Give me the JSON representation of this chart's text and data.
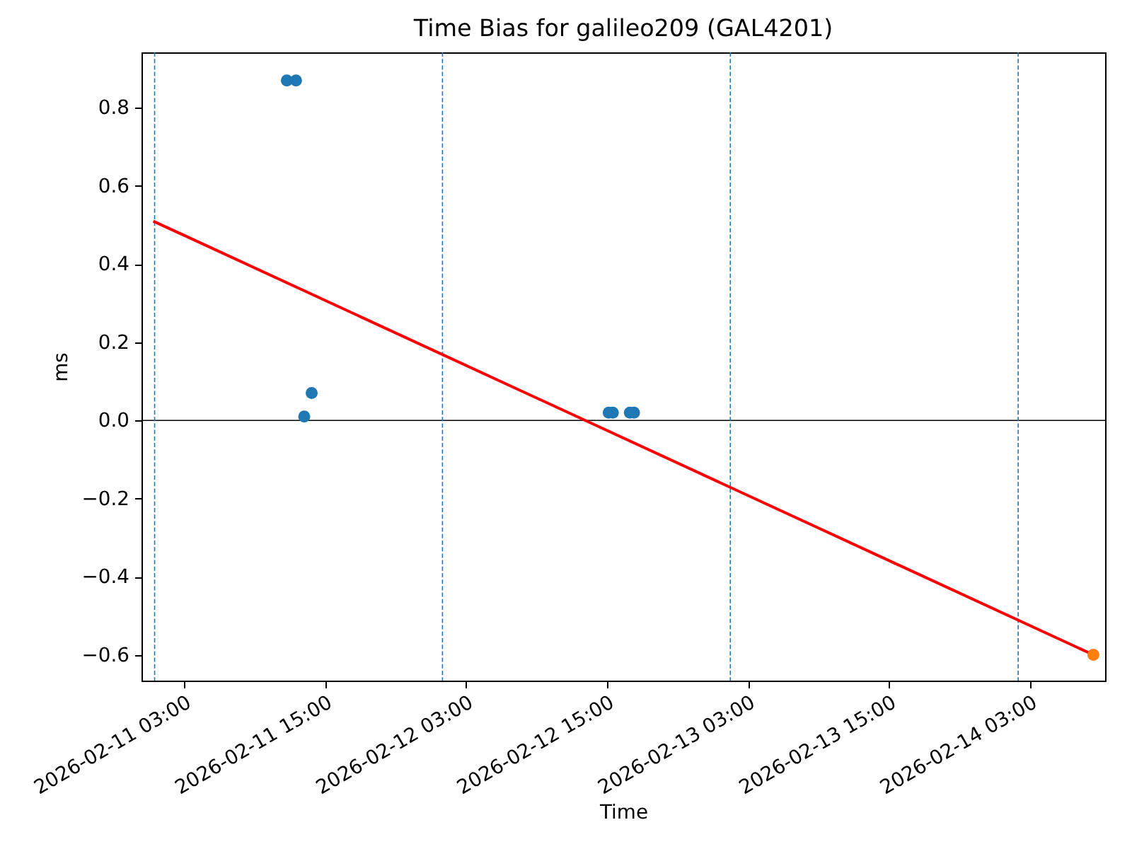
{
  "chart_data": {
    "type": "scatter",
    "title": "Time Bias for galileo209 (GAL4201)",
    "xlabel": "Time",
    "ylabel": "ms",
    "series": [
      {
        "type": "line",
        "color": "#ff0000",
        "x": [
          "2026-02-11T00:23",
          "2026-02-14T08:24"
        ],
        "values": [
          0.51,
          -0.6
        ]
      },
      {
        "color": "#1f77b4",
        "marker": "circle",
        "x": [
          "2026-02-11T11:45",
          "2026-02-11T12:32",
          "2026-02-11T13:14",
          "2026-02-11T13:52",
          "2026-02-12T15:09",
          "2026-02-12T15:30",
          "2026-02-12T16:57",
          "2026-02-12T17:18"
        ],
        "values": [
          0.87,
          0.87,
          0.01,
          0.07,
          0.02,
          0.02,
          0.02,
          0.02
        ]
      },
      {
        "color": "#ff7f0e",
        "marker": "circle",
        "x": [
          "2026-02-14T08:24"
        ],
        "values": [
          -0.6
        ]
      }
    ],
    "xlim": [
      "2026-02-10T23:23",
      "2026-02-14T09:24"
    ],
    "ylim": [
      -0.666,
      0.942
    ],
    "xticks": [
      {
        "value": "2026-02-11T03:00",
        "label": "2026-02-11 03:00"
      },
      {
        "value": "2026-02-11T15:00",
        "label": "2026-02-11 15:00"
      },
      {
        "value": "2026-02-12T03:00",
        "label": "2026-02-12 03:00"
      },
      {
        "value": "2026-02-12T15:00",
        "label": "2026-02-12 15:00"
      },
      {
        "value": "2026-02-13T03:00",
        "label": "2026-02-13 03:00"
      },
      {
        "value": "2026-02-13T15:00",
        "label": "2026-02-13 15:00"
      },
      {
        "value": "2026-02-14T03:00",
        "label": "2026-02-14 03:00"
      }
    ],
    "yticks": [
      {
        "value": -0.6,
        "label": "−0.6"
      },
      {
        "value": -0.4,
        "label": "−0.4"
      },
      {
        "value": -0.2,
        "label": "−0.2"
      },
      {
        "value": 0,
        "label": "0.0"
      },
      {
        "value": 0.2,
        "label": "0.2"
      },
      {
        "value": 0.4,
        "label": "0.4"
      },
      {
        "value": 0.6,
        "label": "0.6"
      },
      {
        "value": 0.8,
        "label": "0.8"
      }
    ],
    "ref_lines": [
      {
        "axis": "y",
        "value": 0,
        "color": "#000000",
        "line_style": "solid"
      },
      {
        "axis": "x",
        "value": "2026-02-11T00:30",
        "color": "#1f77b4",
        "line_style": "dashed"
      },
      {
        "axis": "x",
        "value": "2026-02-12T01:00",
        "color": "#1f77b4",
        "line_style": "dashed"
      },
      {
        "axis": "x",
        "value": "2026-02-13T01:30",
        "color": "#1f77b4",
        "line_style": "dashed"
      },
      {
        "axis": "x",
        "value": "2026-02-14T02:00",
        "color": "#1f77b4",
        "line_style": "dashed"
      }
    ]
  }
}
